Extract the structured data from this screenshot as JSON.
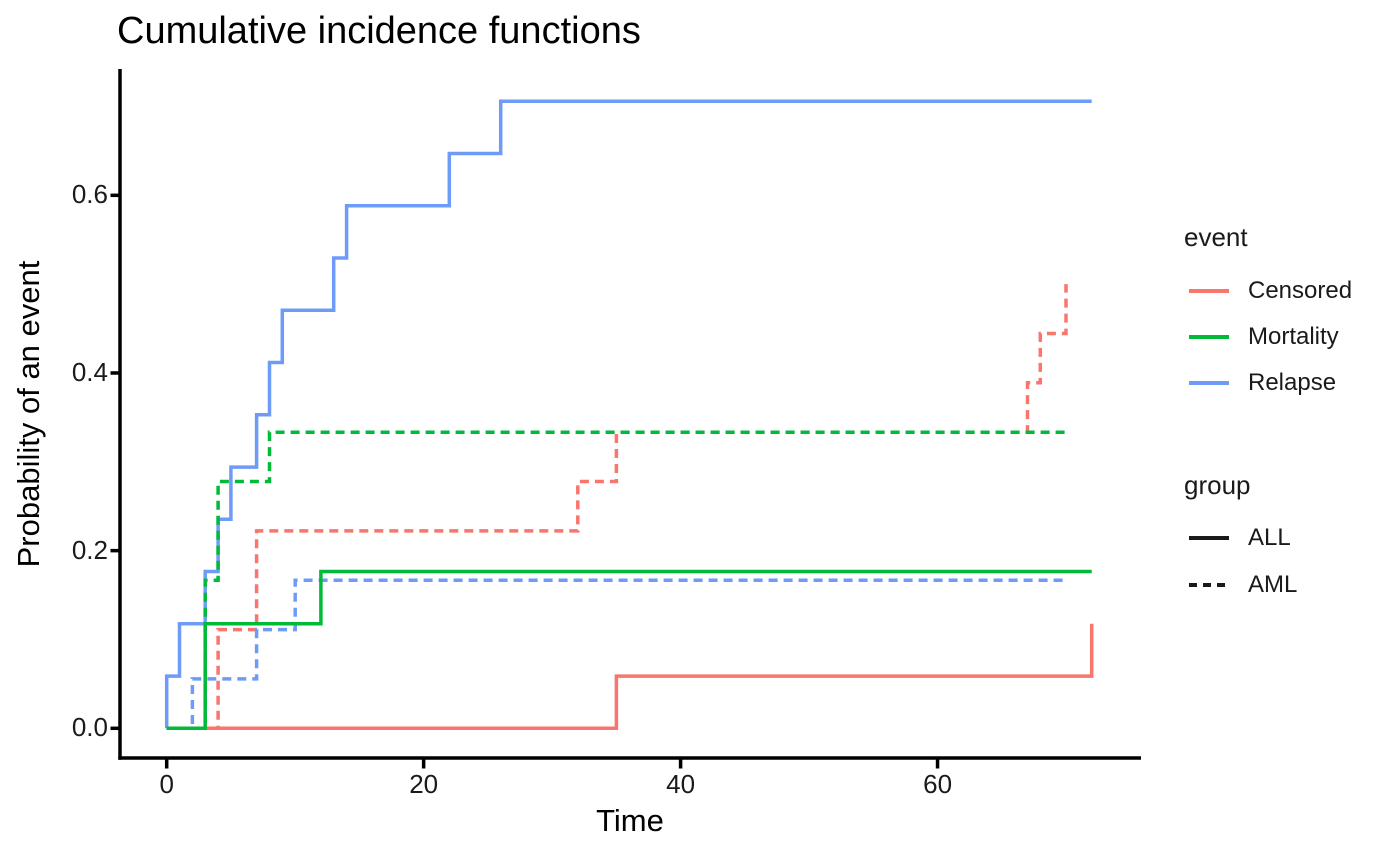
{
  "title": "Cumulative incidence functions",
  "chart_data": {
    "type": "line",
    "subtype": "step",
    "title": "Cumulative incidence functions",
    "xlabel": "Time",
    "ylabel": "Probability of an event",
    "x_ticks": [
      0,
      20,
      40,
      60
    ],
    "x_tick_labels": [
      "0",
      "20",
      "40",
      "60"
    ],
    "y_ticks": [
      0,
      0.2,
      0.4,
      0.6
    ],
    "y_tick_labels": [
      "0.0",
      "0.2",
      "0.4",
      "0.6"
    ],
    "xlim": [
      -3.6,
      75.6
    ],
    "ylim": [
      -0.035,
      0.741
    ],
    "grid": false,
    "legend_position": "right",
    "series": [
      {
        "name": "Censored ALL",
        "event": "Censored",
        "group": "ALL",
        "color": "#F8766D",
        "linetype": "solid",
        "points": [
          [
            0,
            0
          ],
          [
            35,
            0
          ],
          [
            35,
            0.0588
          ],
          [
            72,
            0.0588
          ],
          [
            72,
            0.1176
          ]
        ]
      },
      {
        "name": "Censored AML",
        "event": "Censored",
        "group": "AML",
        "color": "#F8766D",
        "linetype": "dashed",
        "points": [
          [
            0,
            0
          ],
          [
            4,
            0
          ],
          [
            4,
            0.1111
          ],
          [
            7,
            0.1111
          ],
          [
            7,
            0.2222
          ],
          [
            32,
            0.2222
          ],
          [
            32,
            0.2778
          ],
          [
            35,
            0.2778
          ],
          [
            35,
            0.3333
          ],
          [
            67,
            0.3333
          ],
          [
            67,
            0.3889
          ],
          [
            68,
            0.3889
          ],
          [
            68,
            0.4444
          ],
          [
            70,
            0.4444
          ],
          [
            70,
            0.5
          ]
        ]
      },
      {
        "name": "Relapse ALL",
        "event": "Relapse",
        "group": "ALL",
        "color": "#6E9BF8",
        "linetype": "solid",
        "points": [
          [
            0,
            0
          ],
          [
            0,
            0.0588
          ],
          [
            1,
            0.0588
          ],
          [
            1,
            0.1176
          ],
          [
            3,
            0.1176
          ],
          [
            3,
            0.1765
          ],
          [
            4,
            0.1765
          ],
          [
            4,
            0.2353
          ],
          [
            5,
            0.2353
          ],
          [
            5,
            0.2941
          ],
          [
            7,
            0.2941
          ],
          [
            7,
            0.3529
          ],
          [
            8,
            0.3529
          ],
          [
            8,
            0.4118
          ],
          [
            9,
            0.4118
          ],
          [
            9,
            0.4706
          ],
          [
            13,
            0.4706
          ],
          [
            13,
            0.5294
          ],
          [
            14,
            0.5294
          ],
          [
            14,
            0.5882
          ],
          [
            22,
            0.5882
          ],
          [
            22,
            0.6471
          ],
          [
            26,
            0.6471
          ],
          [
            26,
            0.7059
          ],
          [
            72,
            0.7059
          ]
        ]
      },
      {
        "name": "Relapse AML",
        "event": "Relapse",
        "group": "AML",
        "color": "#6E9BF8",
        "linetype": "dashed",
        "points": [
          [
            0,
            0
          ],
          [
            2,
            0
          ],
          [
            2,
            0.0556
          ],
          [
            7,
            0.0556
          ],
          [
            7,
            0.1111
          ],
          [
            10,
            0.1111
          ],
          [
            10,
            0.1667
          ],
          [
            70,
            0.1667
          ]
        ]
      },
      {
        "name": "Mortality ALL",
        "event": "Mortality",
        "group": "ALL",
        "color": "#00BA38",
        "linetype": "solid",
        "points": [
          [
            0,
            0
          ],
          [
            3,
            0
          ],
          [
            3,
            0.1176
          ],
          [
            12,
            0.1176
          ],
          [
            12,
            0.1765
          ],
          [
            72,
            0.1765
          ]
        ]
      },
      {
        "name": "Mortality AML",
        "event": "Mortality",
        "group": "AML",
        "color": "#00BA38",
        "linetype": "dashed",
        "points": [
          [
            0,
            0
          ],
          [
            3,
            0
          ],
          [
            3,
            0.1667
          ],
          [
            4,
            0.1667
          ],
          [
            4,
            0.2778
          ],
          [
            8,
            0.2778
          ],
          [
            8,
            0.3333
          ],
          [
            70,
            0.3333
          ]
        ]
      }
    ]
  },
  "legend": {
    "event": {
      "title": "event",
      "items": [
        {
          "label": "Censored",
          "color": "#F8766D",
          "linetype": "solid"
        },
        {
          "label": "Mortality",
          "color": "#00BA38",
          "linetype": "solid"
        },
        {
          "label": "Relapse",
          "color": "#6E9BF8",
          "linetype": "solid"
        }
      ]
    },
    "group": {
      "title": "group",
      "items": [
        {
          "label": "ALL",
          "color": "#1a1a1a",
          "linetype": "solid"
        },
        {
          "label": "AML",
          "color": "#1a1a1a",
          "linetype": "dashed"
        }
      ]
    }
  },
  "colors": {
    "censored": "#F8766D",
    "mortality": "#00BA38",
    "relapse": "#6E9BF8",
    "axis": "#000000",
    "tick_text": "#1a1a1a"
  }
}
